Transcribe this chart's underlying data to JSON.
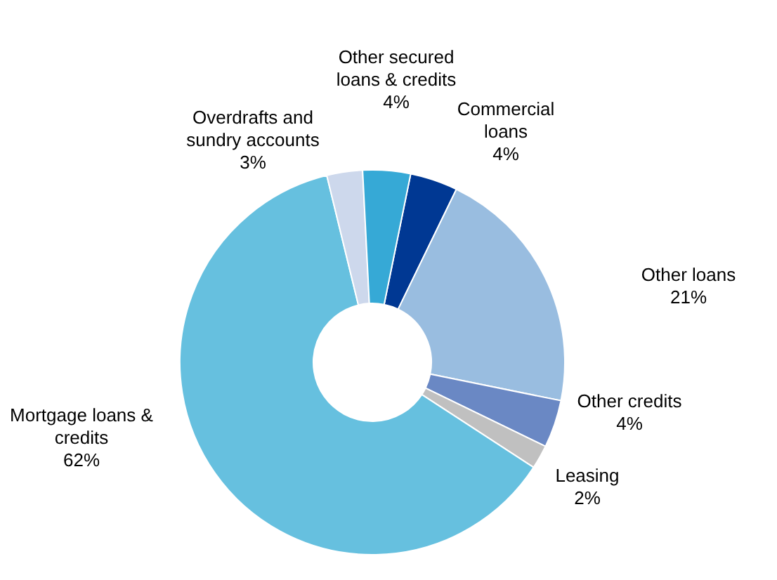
{
  "chart_data": {
    "type": "donut",
    "categories": [
      "Commercial loans",
      "Other loans",
      "Other credits",
      "Leasing",
      "Mortgage loans & credits",
      "Overdrafts and sundry accounts",
      "Other secured loans & credits"
    ],
    "values": [
      4,
      21,
      4,
      2,
      62,
      3,
      4
    ],
    "value_labels": [
      "4%",
      "21%",
      "4%",
      "2%",
      "62%",
      "3%",
      "4%"
    ],
    "colors": [
      "#003893",
      "#99bde0",
      "#6a88c4",
      "#c0c0c0",
      "#66c0df",
      "#cdd8ec",
      "#36a9d6"
    ],
    "legend": false
  }
}
